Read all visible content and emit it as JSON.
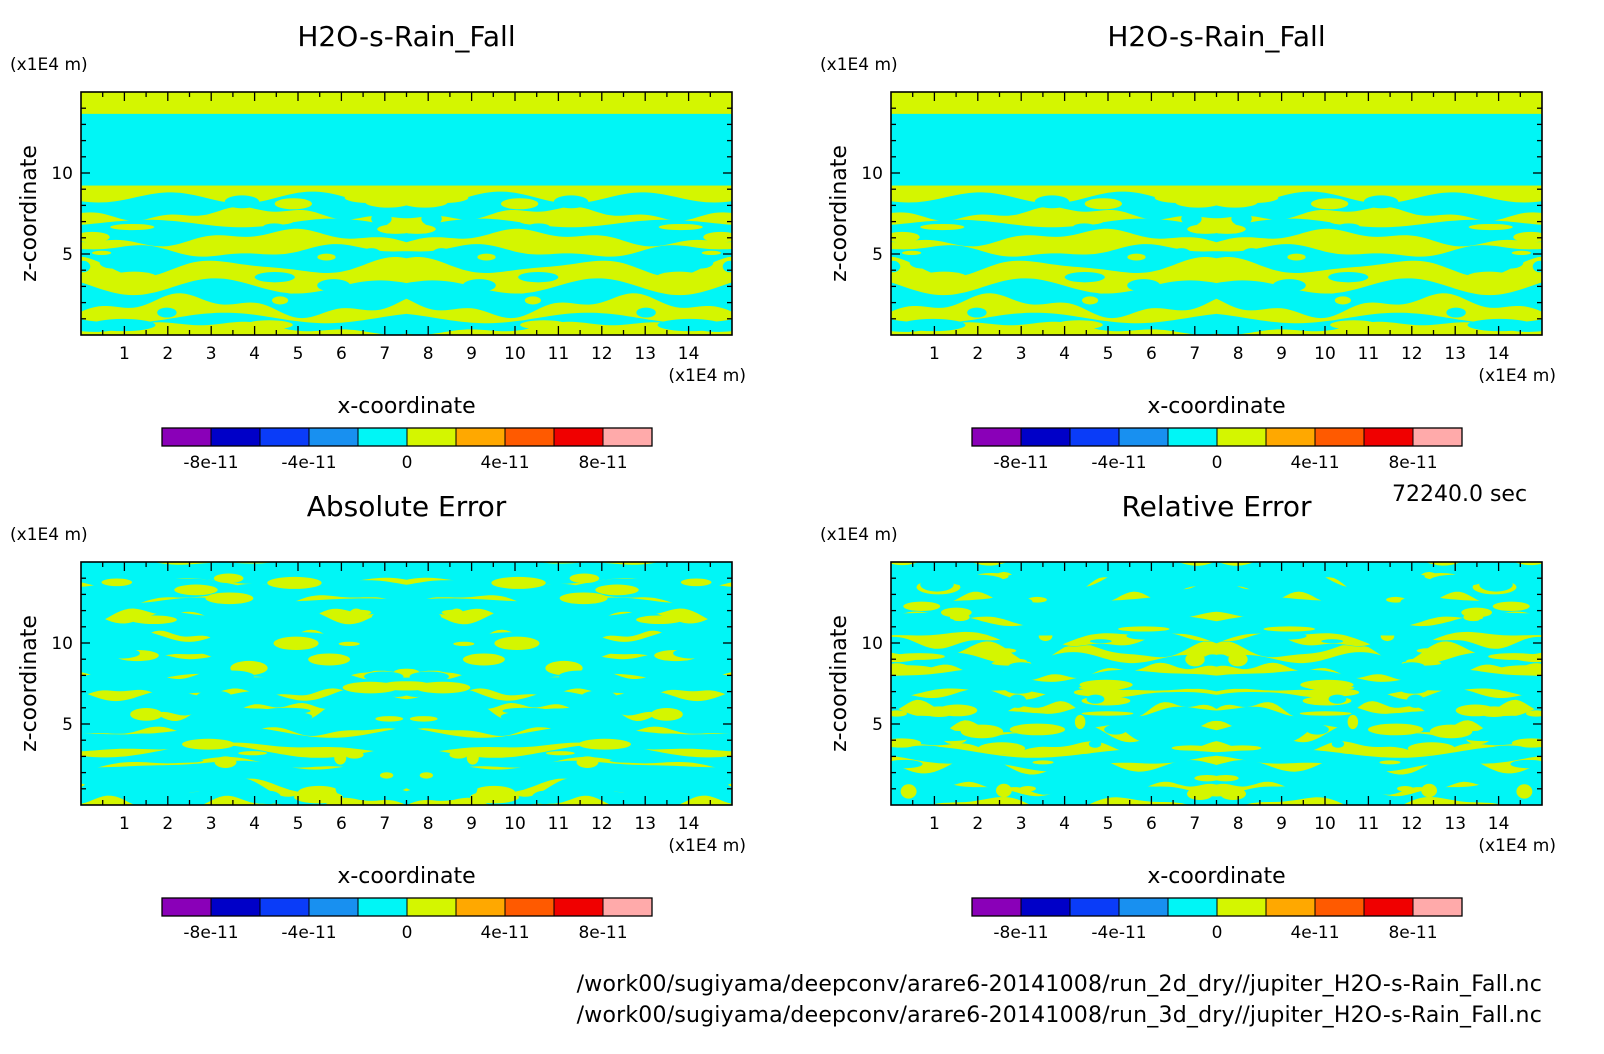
{
  "chart_data": [
    {
      "type": "heatmap",
      "title": "H2O-s-Rain_Fall",
      "xlabel": "x-coordinate",
      "ylabel": "z-coordinate",
      "xunit": "(x1E4 m)",
      "yunit": "(x1E4 m)",
      "xlim": [
        0,
        15
      ],
      "ylim": [
        0,
        15
      ],
      "xticks": [
        "1",
        "2",
        "3",
        "4",
        "5",
        "6",
        "7",
        "8",
        "9",
        "10",
        "11",
        "12",
        "13",
        "14"
      ],
      "yticks": [
        "5",
        "10"
      ],
      "pattern": "field",
      "colorbar": {
        "levels": [
          "-8e-11",
          "-4e-11",
          "0",
          "4e-11",
          "8e-11"
        ],
        "colors": [
          "#8a00b8",
          "#0000c8",
          "#0a3cf8",
          "#1890f0",
          "#00f6f6",
          "#d4f600",
          "#ffa800",
          "#ff5a00",
          "#f00000",
          "#ffaaaa"
        ]
      }
    },
    {
      "type": "heatmap",
      "title": "H2O-s-Rain_Fall",
      "xlabel": "x-coordinate",
      "ylabel": "z-coordinate",
      "xunit": "(x1E4 m)",
      "yunit": "(x1E4 m)",
      "xlim": [
        0,
        15
      ],
      "ylim": [
        0,
        15
      ],
      "xticks": [
        "1",
        "2",
        "3",
        "4",
        "5",
        "6",
        "7",
        "8",
        "9",
        "10",
        "11",
        "12",
        "13",
        "14"
      ],
      "yticks": [
        "5",
        "10"
      ],
      "pattern": "field",
      "colorbar": {
        "levels": [
          "-8e-11",
          "-4e-11",
          "0",
          "4e-11",
          "8e-11"
        ],
        "colors": [
          "#8a00b8",
          "#0000c8",
          "#0a3cf8",
          "#1890f0",
          "#00f6f6",
          "#d4f600",
          "#ffa800",
          "#ff5a00",
          "#f00000",
          "#ffaaaa"
        ]
      }
    },
    {
      "type": "heatmap",
      "title": "Absolute Error",
      "xlabel": "x-coordinate",
      "ylabel": "z-coordinate",
      "xunit": "(x1E4 m)",
      "yunit": "(x1E4 m)",
      "xlim": [
        0,
        15
      ],
      "ylim": [
        0,
        15
      ],
      "xticks": [
        "1",
        "2",
        "3",
        "4",
        "5",
        "6",
        "7",
        "8",
        "9",
        "10",
        "11",
        "12",
        "13",
        "14"
      ],
      "yticks": [
        "5",
        "10"
      ],
      "pattern": "error",
      "colorbar": {
        "levels": [
          "-8e-11",
          "-4e-11",
          "0",
          "4e-11",
          "8e-11"
        ],
        "colors": [
          "#8a00b8",
          "#0000c8",
          "#0a3cf8",
          "#1890f0",
          "#00f6f6",
          "#d4f600",
          "#ffa800",
          "#ff5a00",
          "#f00000",
          "#ffaaaa"
        ]
      }
    },
    {
      "type": "heatmap",
      "title": "Relative Error",
      "xlabel": "x-coordinate",
      "ylabel": "z-coordinate",
      "xunit": "(x1E4 m)",
      "yunit": "(x1E4 m)",
      "xlim": [
        0,
        15
      ],
      "ylim": [
        0,
        15
      ],
      "xticks": [
        "1",
        "2",
        "3",
        "4",
        "5",
        "6",
        "7",
        "8",
        "9",
        "10",
        "11",
        "12",
        "13",
        "14"
      ],
      "yticks": [
        "5",
        "10"
      ],
      "pattern": "error2",
      "colorbar": {
        "levels": [
          "-8e-11",
          "-4e-11",
          "0",
          "4e-11",
          "8e-11"
        ],
        "colors": [
          "#8a00b8",
          "#0000c8",
          "#0a3cf8",
          "#1890f0",
          "#00f6f6",
          "#d4f600",
          "#ffa800",
          "#ff5a00",
          "#f00000",
          "#ffaaaa"
        ]
      }
    }
  ],
  "time_label": "72240.0 sec",
  "file_paths": [
    "/work00/sugiyama/deepconv/arare6-20141008/run_2d_dry//jupiter_H2O-s-Rain_Fall.nc",
    "/work00/sugiyama/deepconv/arare6-20141008/run_3d_dry//jupiter_H2O-s-Rain_Fall.nc"
  ]
}
